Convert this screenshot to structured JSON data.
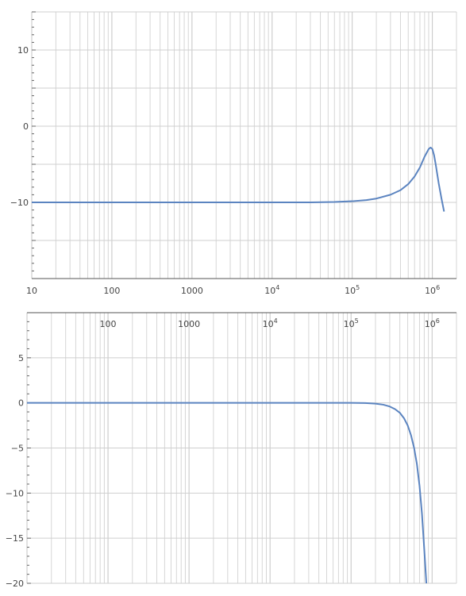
{
  "chart_data": [
    {
      "type": "line",
      "title": "",
      "xlabel": "",
      "ylabel": "",
      "x_scale": "log",
      "xlim": [
        10,
        2000000
      ],
      "ylim": [
        -20,
        15
      ],
      "grid": true,
      "x_tick_labels": [
        {
          "value": 10,
          "label": "10"
        },
        {
          "value": 100,
          "label": "100"
        },
        {
          "value": 1000,
          "label": "1000"
        },
        {
          "value": 10000,
          "base": "10",
          "exp": "4"
        },
        {
          "value": 100000,
          "base": "10",
          "exp": "5"
        },
        {
          "value": 1000000,
          "base": "10",
          "exp": "6"
        }
      ],
      "y_tick_labels": [
        {
          "value": 10,
          "label": "10"
        },
        {
          "value": 0,
          "label": "0"
        },
        {
          "value": -10,
          "label": "−10"
        }
      ],
      "y_minor_grid": [
        -20,
        -15,
        -5,
        5,
        15
      ],
      "series": [
        {
          "color": "#5b84c0",
          "x": [
            10,
            100,
            1000,
            10000,
            30000,
            60000,
            100000,
            150000,
            200000,
            300000,
            400000,
            500000,
            600000,
            700000,
            800000,
            900000,
            950000,
            1000000,
            1050000,
            1100000,
            1200000,
            1300000,
            1400000
          ],
          "y": [
            -10,
            -10,
            -10,
            -10,
            -10,
            -9.95,
            -9.85,
            -9.7,
            -9.5,
            -9.0,
            -8.4,
            -7.6,
            -6.6,
            -5.4,
            -4.0,
            -3.0,
            -2.8,
            -3.0,
            -3.8,
            -5.0,
            -7.5,
            -9.5,
            -11.2
          ]
        }
      ]
    },
    {
      "type": "line",
      "title": "",
      "xlabel": "",
      "ylabel": "",
      "x_scale": "log",
      "xlim": [
        10,
        2000000
      ],
      "ylim": [
        -20,
        10
      ],
      "grid": true,
      "x_tick_labels": [
        {
          "value": 100,
          "label": "100"
        },
        {
          "value": 1000,
          "label": "1000"
        },
        {
          "value": 10000,
          "base": "10",
          "exp": "4"
        },
        {
          "value": 100000,
          "base": "10",
          "exp": "5"
        },
        {
          "value": 1000000,
          "base": "10",
          "exp": "6"
        }
      ],
      "y_tick_labels": [
        {
          "value": 5,
          "label": "5"
        },
        {
          "value": 0,
          "label": "0"
        },
        {
          "value": -5,
          "label": "−5"
        },
        {
          "value": -10,
          "label": "−10"
        },
        {
          "value": -15,
          "label": "−15"
        },
        {
          "value": -20,
          "label": "−20"
        }
      ],
      "series": [
        {
          "color": "#5b84c0",
          "x": [
            10,
            100,
            1000,
            10000,
            100000,
            150000,
            200000,
            250000,
            300000,
            350000,
            400000,
            450000,
            500000,
            550000,
            600000,
            650000,
            700000,
            750000,
            800000,
            850000
          ],
          "y": [
            0,
            0,
            0,
            0,
            0,
            -0.02,
            -0.08,
            -0.2,
            -0.4,
            -0.7,
            -1.1,
            -1.7,
            -2.5,
            -3.6,
            -5.0,
            -6.8,
            -9.2,
            -12.3,
            -16.2,
            -20.0
          ]
        }
      ]
    }
  ]
}
